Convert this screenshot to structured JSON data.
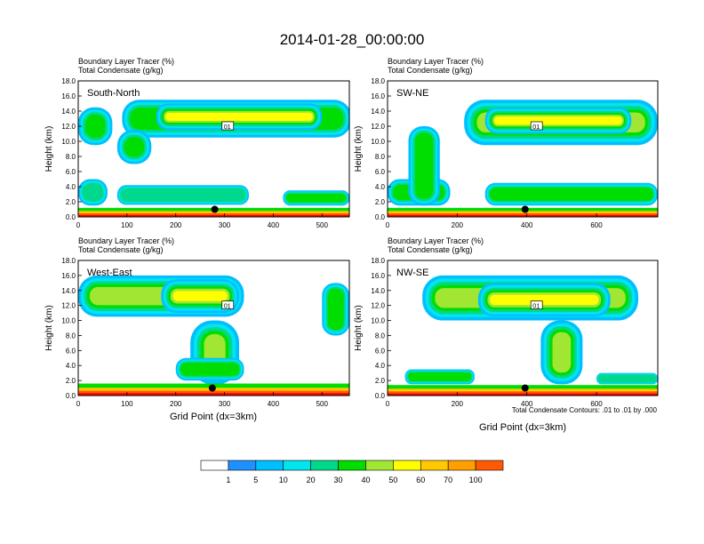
{
  "title": "2014-01-28_00:00:00",
  "header_line1": "Boundary Layer Tracer    (%)",
  "header_line2": "Total Condensate    (g/kg)",
  "ylabel": "Height (km)",
  "xlabel": "Grid Point (dx=3km)",
  "y_ticks": [
    "0.0",
    "2.0",
    "4.0",
    "6.0",
    "8.0",
    "10.0",
    "12.0",
    "14.0",
    "16.0",
    "18.0"
  ],
  "contour_note": "Total Condensate Contours: .01 to .01 by .000",
  "contour_label": "01",
  "colorbar": {
    "levels": [
      "1",
      "5",
      "10",
      "20",
      "30",
      "40",
      "50",
      "60",
      "70",
      "100"
    ],
    "colors": [
      "#ffffff",
      "#1e90ff",
      "#00bfff",
      "#00e5ee",
      "#00d98c",
      "#00dd00",
      "#a0e632",
      "#ffff00",
      "#ffc800",
      "#ffa000",
      "#ff5a00",
      "#ff0000"
    ]
  },
  "chart_data": [
    {
      "type": "heatmap",
      "panel": "South-North",
      "xlim": [
        0,
        556
      ],
      "ylim": [
        0,
        18
      ],
      "x_ticks": [
        "0",
        "100",
        "200",
        "300",
        "400",
        "500"
      ],
      "x_tick_values": [
        0,
        100,
        200,
        300,
        400,
        500
      ],
      "marker": {
        "x": 280,
        "y": 1.0
      },
      "clouds": [
        {
          "x": [
            90,
            560
          ],
          "y": [
            10.5,
            15.5
          ],
          "v": 25
        },
        {
          "x": [
            160,
            500
          ],
          "y": [
            11.5,
            15.0
          ],
          "v": 40
        },
        {
          "x": [
            0,
            70
          ],
          "y": [
            9.5,
            14.5
          ],
          "v": 25
        },
        {
          "x": [
            80,
            150
          ],
          "y": [
            7.0,
            11.5
          ],
          "v": 20
        },
        {
          "x": [
            0,
            60
          ],
          "y": [
            1.5,
            5.0
          ],
          "v": 15
        },
        {
          "x": [
            80,
            350
          ],
          "y": [
            1.6,
            4.2
          ],
          "v": 15
        },
        {
          "x": [
            420,
            556
          ],
          "y": [
            1.5,
            3.5
          ],
          "v": 20
        }
      ],
      "boundary_layer_top_km": 1.2
    },
    {
      "type": "heatmap",
      "panel": "SW-NE",
      "xlim": [
        0,
        776
      ],
      "ylim": [
        0,
        18
      ],
      "x_ticks": [
        "0",
        "200",
        "400",
        "600"
      ],
      "x_tick_values": [
        0,
        200,
        400,
        600
      ],
      "marker": {
        "x": 395,
        "y": 1.0
      },
      "clouds": [
        {
          "x": [
            220,
            776
          ],
          "y": [
            9.5,
            15.5
          ],
          "v": 30
        },
        {
          "x": [
            280,
            700
          ],
          "y": [
            11.0,
            14.5
          ],
          "v": 45
        },
        {
          "x": [
            0,
            180
          ],
          "y": [
            1.5,
            5.0
          ],
          "v": 20
        },
        {
          "x": [
            60,
            150
          ],
          "y": [
            1.5,
            12.0
          ],
          "v": 25
        },
        {
          "x": [
            280,
            776
          ],
          "y": [
            1.5,
            4.5
          ],
          "v": 20
        }
      ],
      "boundary_layer_top_km": 1.2
    },
    {
      "type": "heatmap",
      "panel": "West-East",
      "xlim": [
        0,
        556
      ],
      "ylim": [
        0,
        18
      ],
      "x_ticks": [
        "0",
        "100",
        "200",
        "300",
        "400",
        "500"
      ],
      "x_tick_values": [
        0,
        100,
        200,
        300,
        400,
        500
      ],
      "marker": {
        "x": 275,
        "y": 1.0
      },
      "clouds": [
        {
          "x": [
            0,
            340
          ],
          "y": [
            10.5,
            16.0
          ],
          "v": 30
        },
        {
          "x": [
            170,
            330
          ],
          "y": [
            11.0,
            15.5
          ],
          "v": 45
        },
        {
          "x": [
            230,
            330
          ],
          "y": [
            1.5,
            10.0
          ],
          "v": 30
        },
        {
          "x": [
            500,
            556
          ],
          "y": [
            8.0,
            15.0
          ],
          "v": 25
        },
        {
          "x": [
            200,
            340
          ],
          "y": [
            2.0,
            5.0
          ],
          "v": 20
        }
      ],
      "boundary_layer_top_km": 1.6
    },
    {
      "type": "heatmap",
      "panel": "NW-SE",
      "xlim": [
        0,
        776
      ],
      "ylim": [
        0,
        18
      ],
      "x_ticks": [
        "0",
        "200",
        "400",
        "600"
      ],
      "x_tick_values": [
        0,
        200,
        400,
        600
      ],
      "marker": {
        "x": 395,
        "y": 1.0
      },
      "clouds": [
        {
          "x": [
            100,
            720
          ],
          "y": [
            10.0,
            16.0
          ],
          "v": 30
        },
        {
          "x": [
            260,
            640
          ],
          "y": [
            10.5,
            15.0
          ],
          "v": 45
        },
        {
          "x": [
            440,
            560
          ],
          "y": [
            1.5,
            10.0
          ],
          "v": 30
        },
        {
          "x": [
            50,
            250
          ],
          "y": [
            1.5,
            3.5
          ],
          "v": 20
        },
        {
          "x": [
            600,
            776
          ],
          "y": [
            1.5,
            3.0
          ],
          "v": 15
        }
      ],
      "boundary_layer_top_km": 1.4
    }
  ]
}
